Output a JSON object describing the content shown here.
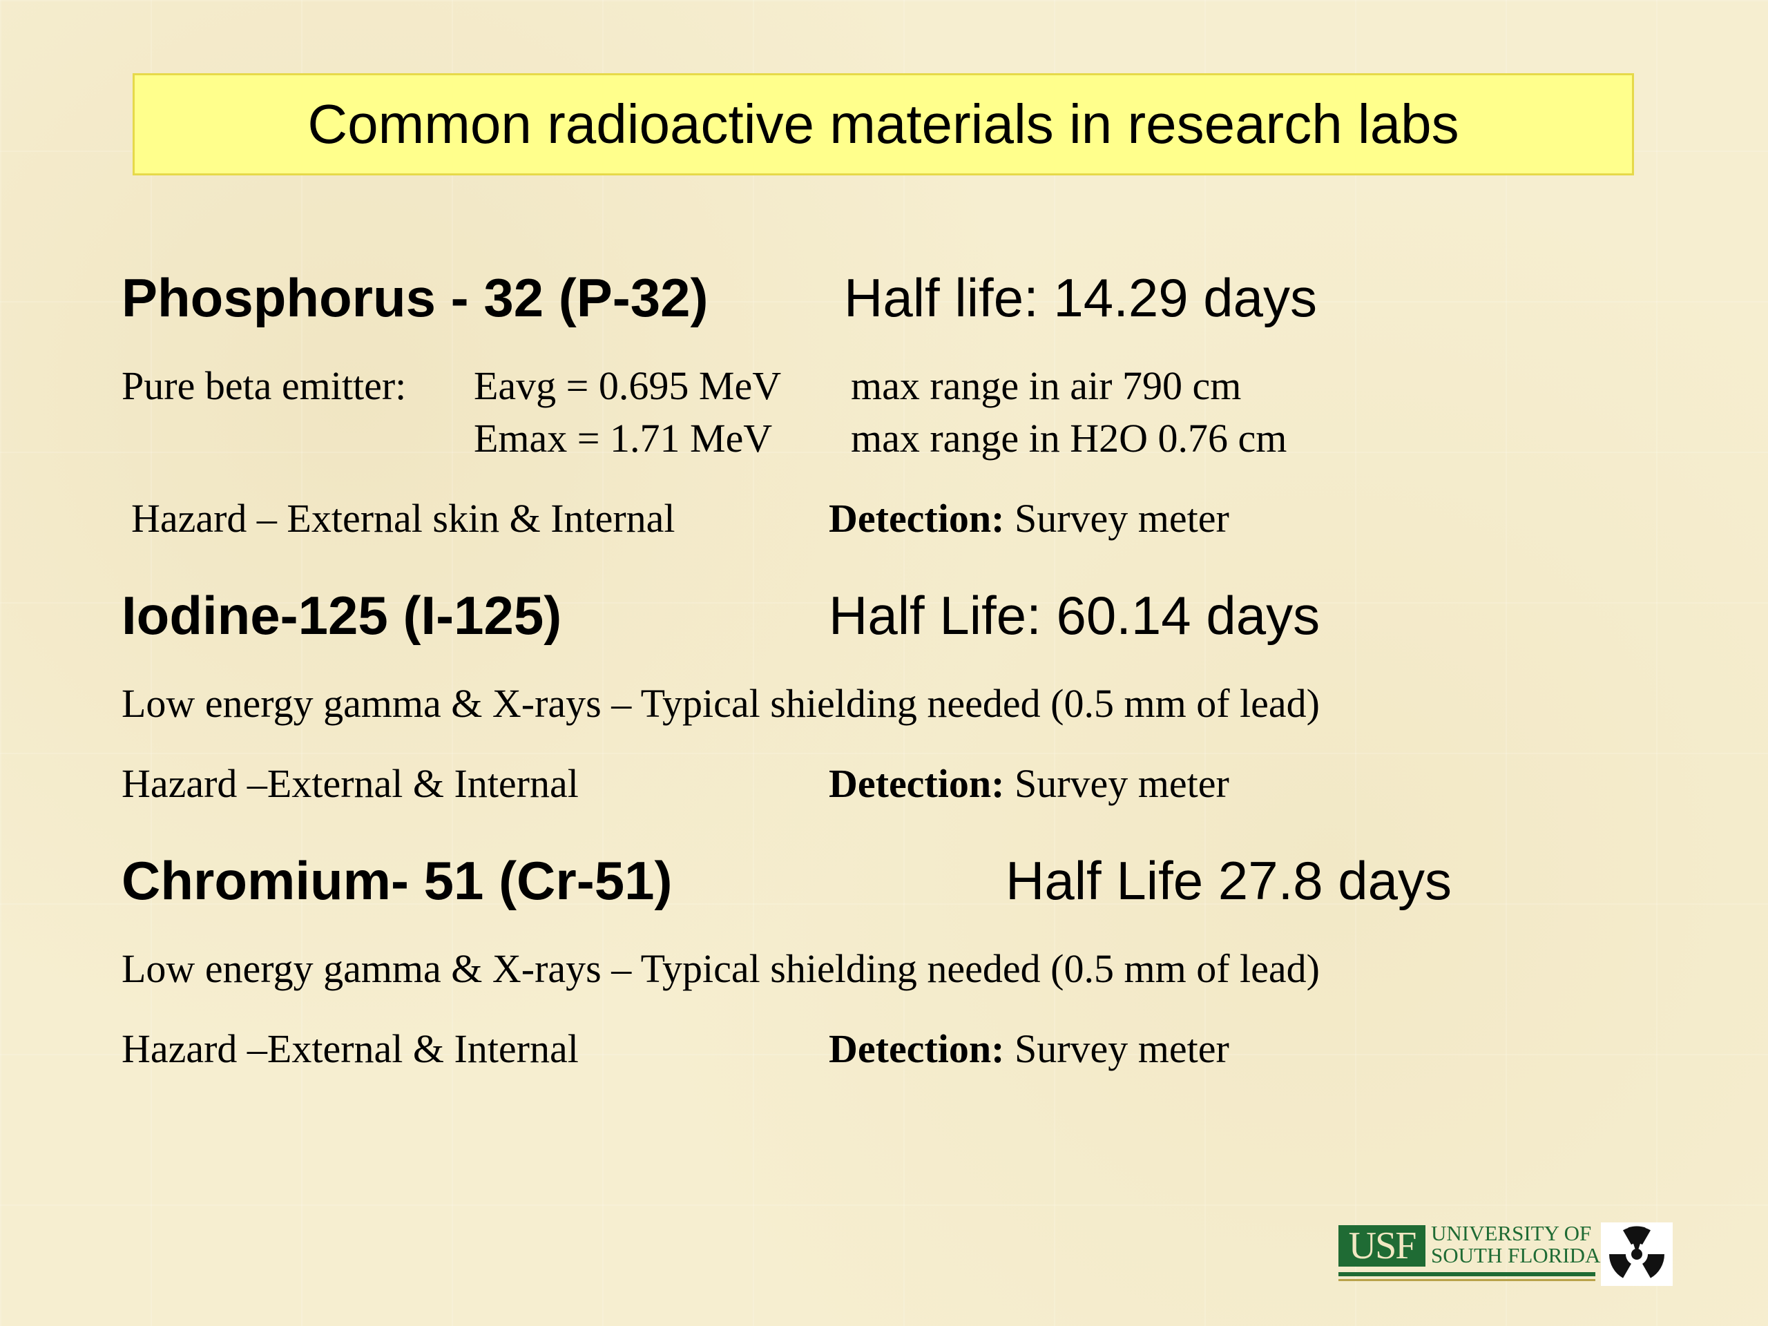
{
  "title": "Common radioactive materials in research labs",
  "p32": {
    "name": "Phosphorus - 32 (P-32)",
    "half_life": "Half life:  14.29 days",
    "emitter": "Pure beta emitter:",
    "eavg": "Eavg  = 0.695 MeV",
    "emax": "Emax = 1.71 MeV",
    "range_air": "max range in air 790 cm",
    "range_h2o": "max range in H2O 0.76 cm",
    "hazard": "Hazard – External skin & Internal",
    "detection_label": "Detection:",
    "detection_value": " Survey meter"
  },
  "i125": {
    "name": "Iodine-125 (I-125)",
    "half_life": "Half Life:  60.14 days",
    "description": "Low energy gamma & X-rays – Typical shielding needed (0.5 mm of lead)",
    "hazard": "Hazard –External & Internal",
    "detection_label": "Detection:",
    "detection_value": " Survey meter"
  },
  "cr51": {
    "name": "Chromium- 51 (Cr-51)",
    "half_life": "Half Life 27.8 days",
    "description": "Low energy gamma & X-rays – Typical shielding needed (0.5 mm of lead)",
    "hazard": "Hazard –External & Internal",
    "detection_label": "Detection:",
    "detection_value": " Survey meter"
  },
  "logo": {
    "abbr": "USF",
    "line1": "UNIVERSITY OF",
    "line2": "SOUTH FLORIDA.",
    "icon": "radiation-trefoil-icon",
    "green": "#1f6b34"
  }
}
